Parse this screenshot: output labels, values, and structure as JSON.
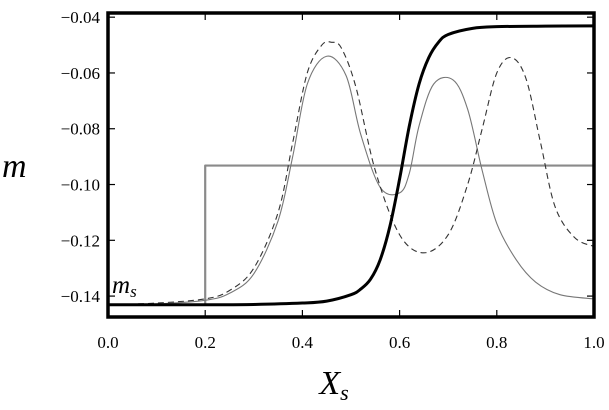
{
  "chart_data": {
    "type": "line",
    "xlabel": "X",
    "xlabel_sub": "s",
    "ylabel": "m",
    "annotation": {
      "text": "m",
      "sub": "s"
    },
    "xlim": [
      0.0,
      1.0
    ],
    "ylim": [
      -0.1475,
      -0.0385
    ],
    "xticks": [
      0.0,
      0.2,
      0.4,
      0.6,
      0.8,
      1.0
    ],
    "xtick_labels": [
      "0.0",
      "0.2",
      "0.4",
      "0.6",
      "0.8",
      "1.0"
    ],
    "yticks": [
      -0.14,
      -0.12,
      -0.1,
      -0.08,
      -0.06,
      -0.04
    ],
    "ytick_labels": [
      "−0.14",
      "−0.12",
      "−0.10",
      "−0.08",
      "−0.06",
      "−0.04"
    ],
    "grid": false,
    "frame": "full box, thick",
    "series": [
      {
        "style": "thick solid black",
        "color": "#000000",
        "x": [
          0.0,
          0.1,
          0.2,
          0.3,
          0.4,
          0.45,
          0.5,
          0.52,
          0.54,
          0.56,
          0.58,
          0.6,
          0.62,
          0.64,
          0.66,
          0.68,
          0.7,
          0.75,
          0.8,
          0.9,
          1.0
        ],
        "y": [
          -0.1431,
          -0.1431,
          -0.1431,
          -0.143,
          -0.1425,
          -0.1418,
          -0.1395,
          -0.1375,
          -0.134,
          -0.127,
          -0.115,
          -0.098,
          -0.079,
          -0.064,
          -0.0545,
          -0.049,
          -0.0462,
          -0.044,
          -0.0434,
          -0.0432,
          -0.0431
        ]
      },
      {
        "style": "thin dashed black",
        "color": "#333333",
        "x": [
          0.0,
          0.1,
          0.2,
          0.25,
          0.3,
          0.35,
          0.38,
          0.41,
          0.44,
          0.46,
          0.48,
          0.51,
          0.55,
          0.6,
          0.65,
          0.7,
          0.74,
          0.77,
          0.8,
          0.83,
          0.86,
          0.89,
          0.92,
          0.96,
          1.0
        ],
        "y": [
          -0.1431,
          -0.1425,
          -0.141,
          -0.138,
          -0.13,
          -0.11,
          -0.085,
          -0.06,
          -0.05,
          -0.049,
          -0.051,
          -0.065,
          -0.095,
          -0.118,
          -0.1245,
          -0.118,
          -0.1,
          -0.08,
          -0.06,
          -0.0545,
          -0.062,
          -0.085,
          -0.108,
          -0.119,
          -0.1222
        ]
      },
      {
        "style": "thin solid gray",
        "color": "#777777",
        "x": [
          0.0,
          0.1,
          0.2,
          0.25,
          0.3,
          0.35,
          0.38,
          0.41,
          0.45,
          0.49,
          0.52,
          0.56,
          0.6,
          0.62,
          0.64,
          0.67,
          0.71,
          0.74,
          0.77,
          0.8,
          0.84,
          0.88,
          0.93,
          1.0
        ],
        "y": [
          -0.1431,
          -0.1428,
          -0.1415,
          -0.139,
          -0.132,
          -0.113,
          -0.09,
          -0.064,
          -0.054,
          -0.061,
          -0.082,
          -0.101,
          -0.103,
          -0.096,
          -0.079,
          -0.064,
          -0.0625,
          -0.073,
          -0.095,
          -0.114,
          -0.127,
          -0.135,
          -0.1395,
          -0.141
        ]
      },
      {
        "style": "medium solid gray step",
        "color": "#8a8a8a",
        "x": [
          0.0,
          0.2,
          0.2,
          1.0
        ],
        "y": [
          -0.1431,
          -0.1431,
          -0.0932,
          -0.0932
        ]
      }
    ]
  }
}
